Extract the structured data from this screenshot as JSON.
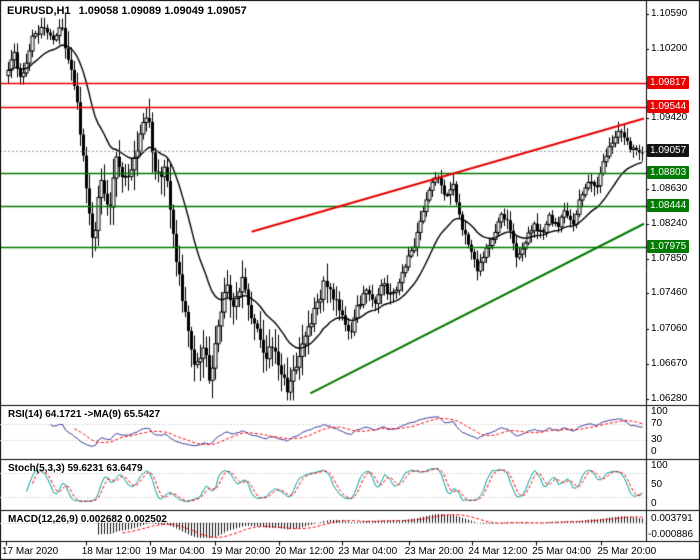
{
  "header": {
    "symbol_period": "EURUSD,H1",
    "ohlc": "1.09058 1.09089 1.09049 1.09057"
  },
  "price_axis": {
    "plain_labels": [
      {
        "price": 1.1059,
        "text": "1.10590"
      },
      {
        "price": 1.102,
        "text": "1.10200"
      },
      {
        "price": 1.0942,
        "text": "1.09420"
      },
      {
        "price": 1.0863,
        "text": "1.08630"
      },
      {
        "price": 1.0824,
        "text": "1.08240"
      },
      {
        "price": 1.0785,
        "text": "1.07850"
      },
      {
        "price": 1.0746,
        "text": "1.07460"
      },
      {
        "price": 1.0706,
        "text": "1.07060"
      },
      {
        "price": 1.0667,
        "text": "1.06670"
      },
      {
        "price": 1.0628,
        "text": "1.06280"
      }
    ],
    "badges": [
      {
        "price": 1.09817,
        "text": "1.09817",
        "bg": "#e80000"
      },
      {
        "price": 1.09544,
        "text": "1.09544",
        "bg": "#e80000"
      },
      {
        "price": 1.09057,
        "text": "1.09057",
        "bg": "#141414"
      },
      {
        "price": 1.08803,
        "text": "1.08803",
        "bg": "#007a00"
      },
      {
        "price": 1.08444,
        "text": "1.08444",
        "bg": "#007a00"
      },
      {
        "price": 1.07975,
        "text": "1.07975",
        "bg": "#007a00"
      }
    ]
  },
  "time_axis": {
    "labels": [
      {
        "f": 0.0,
        "text": "17 Mar 2020"
      },
      {
        "f": 0.125,
        "text": "18 Mar 12:00"
      },
      {
        "f": 0.225,
        "text": "19 Mar 04:00"
      },
      {
        "f": 0.328,
        "text": "19 Mar 20:00"
      },
      {
        "f": 0.428,
        "text": "20 Mar 12:00"
      },
      {
        "f": 0.527,
        "text": "23 Mar 04:00"
      },
      {
        "f": 0.631,
        "text": "23 Mar 20:00"
      },
      {
        "f": 0.731,
        "text": "24 Mar 12:00"
      },
      {
        "f": 0.831,
        "text": "25 Mar 04:00"
      },
      {
        "f": 0.933,
        "text": "25 Mar 20:00"
      }
    ]
  },
  "panels": {
    "rsi": {
      "label": "RSI(14) 64.1721 ->MA(9) 65.5427",
      "line_color": "#3c3c9c",
      "signal_color": "#ff0000",
      "levels": [
        30,
        70
      ],
      "axis": [
        {
          "v": 100,
          "text": "100"
        },
        {
          "v": 70,
          "text": "70"
        },
        {
          "v": 30,
          "text": "30"
        },
        {
          "v": 0,
          "text": "0"
        }
      ]
    },
    "stoch": {
      "label": "Stoch(5,3,3) 59.6231 63.6479",
      "line_color": "#00a0a0",
      "signal_color": "#ff0000",
      "levels": [
        20,
        80
      ],
      "axis": [
        {
          "v": 100,
          "text": "100"
        },
        {
          "v": 50,
          "text": "50"
        },
        {
          "v": 0,
          "text": "0"
        }
      ]
    },
    "macd": {
      "label": "MACD(12,26,9) 0.002682 0.002502",
      "bar_color": "#151515",
      "signal_color": "#ff0000",
      "axis_top": "0.003791",
      "axis_bottom": "-0.000886"
    }
  },
  "chart_data": {
    "type": "candlestick",
    "symbol": "EURUSD",
    "timeframe": "H1",
    "current_price": 1.09057,
    "price_range": [
      1.0622,
      1.1068
    ],
    "bars": 212,
    "seed": 73,
    "candle_up": "#ffffff",
    "candle_down": "#000000",
    "wick": "#000000",
    "ma_color": "#000000",
    "hlines": [
      {
        "price": 1.09817,
        "color": "#e80000"
      },
      {
        "price": 1.09544,
        "color": "#e80000"
      },
      {
        "price": 1.08803,
        "color": "#007a00"
      },
      {
        "price": 1.08444,
        "color": "#007a00"
      },
      {
        "price": 1.07975,
        "color": "#007a00"
      }
    ],
    "trendlines": [
      {
        "from": [
          0.385,
          1.0815
        ],
        "to": [
          1.0,
          1.0942
        ],
        "color": "#e80000"
      },
      {
        "from": [
          0.477,
          1.0634
        ],
        "to": [
          1.0,
          1.0824
        ],
        "color": "#007a00"
      }
    ],
    "indicators": {
      "ma_period": 22,
      "rsi_period": 14,
      "rsi_ma": 9,
      "stoch": [
        5,
        3,
        3
      ],
      "macd": [
        12,
        26,
        9
      ]
    },
    "path": [
      [
        0.0,
        1.099
      ],
      [
        0.013,
        1.1015
      ],
      [
        0.025,
        1.0985
      ],
      [
        0.041,
        1.103
      ],
      [
        0.059,
        1.1042
      ],
      [
        0.075,
        1.103
      ],
      [
        0.088,
        1.1048
      ],
      [
        0.1,
        1.1005
      ],
      [
        0.113,
        1.0955
      ],
      [
        0.125,
        1.0885
      ],
      [
        0.138,
        1.08
      ],
      [
        0.15,
        1.0868
      ],
      [
        0.163,
        1.0838
      ],
      [
        0.175,
        1.0902
      ],
      [
        0.188,
        1.0872
      ],
      [
        0.2,
        1.0882
      ],
      [
        0.213,
        1.0926
      ],
      [
        0.225,
        1.094
      ],
      [
        0.238,
        1.0872
      ],
      [
        0.25,
        1.0892
      ],
      [
        0.263,
        1.082
      ],
      [
        0.275,
        1.0752
      ],
      [
        0.288,
        1.07
      ],
      [
        0.3,
        1.066
      ],
      [
        0.313,
        1.0685
      ],
      [
        0.322,
        1.0648
      ],
      [
        0.334,
        1.0705
      ],
      [
        0.347,
        1.0752
      ],
      [
        0.359,
        1.0732
      ],
      [
        0.372,
        1.0762
      ],
      [
        0.384,
        1.0732
      ],
      [
        0.397,
        1.07
      ],
      [
        0.409,
        1.0678
      ],
      [
        0.422,
        1.0692
      ],
      [
        0.434,
        1.0652
      ],
      [
        0.447,
        1.0638
      ],
      [
        0.459,
        1.0675
      ],
      [
        0.475,
        1.0705
      ],
      [
        0.491,
        1.0738
      ],
      [
        0.503,
        1.0762
      ],
      [
        0.516,
        1.0742
      ],
      [
        0.528,
        1.0718
      ],
      [
        0.541,
        1.0698
      ],
      [
        0.553,
        1.0732
      ],
      [
        0.566,
        1.0748
      ],
      [
        0.578,
        1.0732
      ],
      [
        0.591,
        1.076
      ],
      [
        0.603,
        1.0742
      ],
      [
        0.616,
        1.0755
      ],
      [
        0.628,
        1.0778
      ],
      [
        0.641,
        1.08
      ],
      [
        0.653,
        1.0832
      ],
      [
        0.666,
        1.0862
      ],
      [
        0.678,
        1.088
      ],
      [
        0.691,
        1.0852
      ],
      [
        0.703,
        1.0868
      ],
      [
        0.716,
        1.0822
      ],
      [
        0.728,
        1.08
      ],
      [
        0.741,
        1.0772
      ],
      [
        0.753,
        1.0792
      ],
      [
        0.766,
        1.0812
      ],
      [
        0.778,
        1.0838
      ],
      [
        0.791,
        1.082
      ],
      [
        0.803,
        1.0782
      ],
      [
        0.816,
        1.0802
      ],
      [
        0.828,
        1.0822
      ],
      [
        0.841,
        1.0812
      ],
      [
        0.853,
        1.0832
      ],
      [
        0.866,
        1.082
      ],
      [
        0.878,
        1.084
      ],
      [
        0.891,
        1.0824
      ],
      [
        0.903,
        1.0852
      ],
      [
        0.916,
        1.0872
      ],
      [
        0.928,
        1.0866
      ],
      [
        0.941,
        1.0896
      ],
      [
        0.953,
        1.0916
      ],
      [
        0.966,
        1.0932
      ],
      [
        0.978,
        1.091
      ],
      [
        1.0,
        1.0906
      ]
    ]
  }
}
